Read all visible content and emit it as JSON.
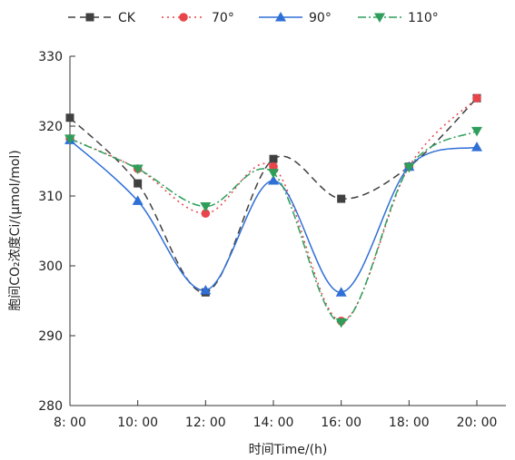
{
  "chart_data": {
    "type": "line",
    "xlabel": "时间Time/(h)",
    "ylabel": "胞间CO₂浓度Ci/(μmol/mol)",
    "categories": [
      "8: 00",
      "10: 00",
      "12: 00",
      "14: 00",
      "16: 00",
      "18: 00",
      "20: 00"
    ],
    "x": [
      8,
      10,
      12,
      14,
      16,
      18,
      20
    ],
    "ylim": [
      280,
      330
    ],
    "yticks": [
      280,
      290,
      300,
      310,
      320,
      330
    ],
    "grid": false,
    "legend_position": "top",
    "series": [
      {
        "name": "CK",
        "marker": "square",
        "dash": "8,5",
        "color": "#404040",
        "values": [
          321.2,
          311.8,
          296.2,
          315.3,
          309.6,
          314.2,
          324.0
        ]
      },
      {
        "name": "70°",
        "marker": "circle",
        "dash": "2,4",
        "color": "#e8454a",
        "values": [
          318.2,
          313.9,
          307.5,
          314.2,
          292.1,
          314.2,
          324.0
        ]
      },
      {
        "name": "90°",
        "marker": "triangle-up",
        "dash": "",
        "color": "#2f6fd6",
        "values": [
          318.0,
          309.3,
          296.5,
          312.2,
          296.2,
          314.2,
          317.0
        ]
      },
      {
        "name": "110°",
        "marker": "triangle-down",
        "dash": "9,3,2,3",
        "color": "#2e9e5b",
        "values": [
          318.2,
          313.9,
          308.5,
          313.3,
          291.9,
          314.1,
          319.3
        ]
      }
    ]
  }
}
